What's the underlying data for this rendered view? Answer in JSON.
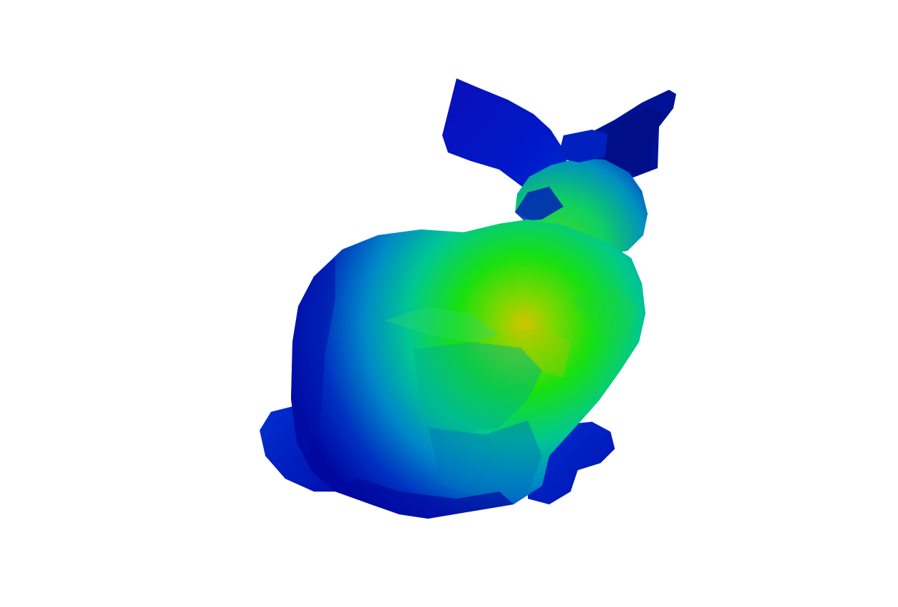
{
  "viewer": {
    "background": "#ffffff"
  },
  "model": {
    "object": "bunny-mesh",
    "colormap": {
      "low": "#0000a0",
      "mid_low": "#0060d0",
      "mid": "#00d0b0",
      "mid_high": "#10e010",
      "high": "#d0c000"
    }
  }
}
